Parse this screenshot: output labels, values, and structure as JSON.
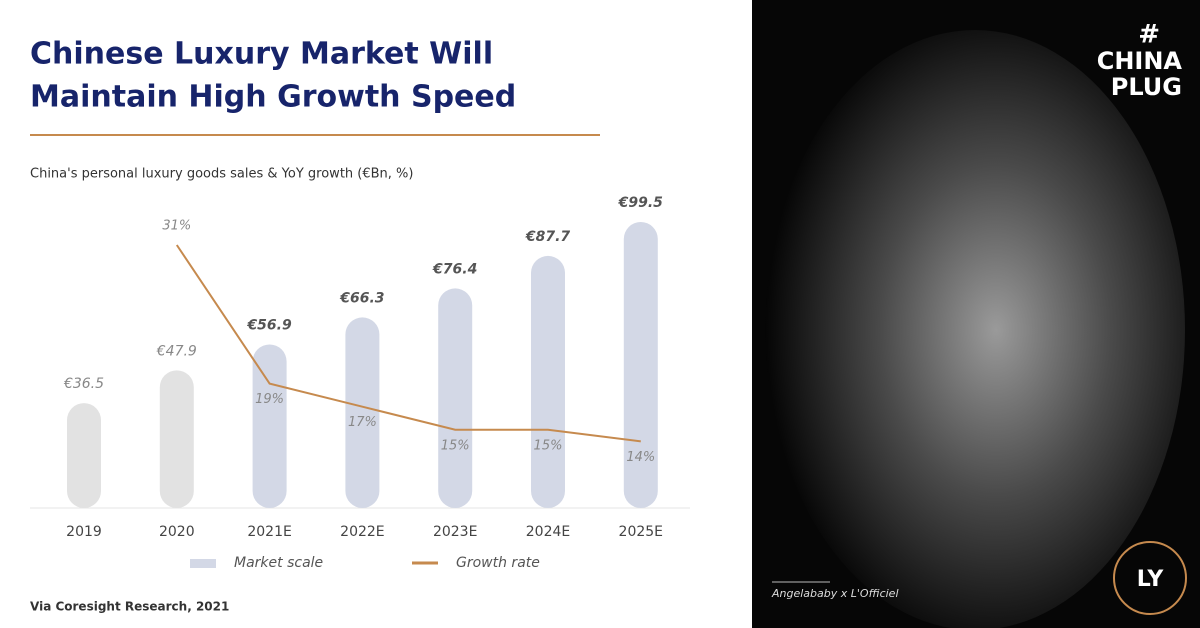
{
  "header": {
    "title": [
      "Chinese Luxury Market Will",
      "Maintain High Growth Speed"
    ]
  },
  "chart_data": {
    "type": "bar",
    "subtitle": "China's personal luxury goods sales & YoY growth (€Bn, %)",
    "categories": [
      "2019",
      "2020",
      "2021E",
      "2022E",
      "2023E",
      "2024E",
      "2025E"
    ],
    "series": [
      {
        "name": "Market scale",
        "type": "bar",
        "color": "#d3d8e6",
        "colors": [
          "#e2e2e2",
          "#e2e2e2",
          "#d3d8e6",
          "#d3d8e6",
          "#d3d8e6",
          "#d3d8e6",
          "#d3d8e6"
        ],
        "values": [
          36.5,
          47.9,
          56.9,
          66.3,
          76.4,
          87.7,
          99.5
        ],
        "value_labels": [
          "€36.5",
          "€47.9",
          "€56.9",
          "€66.3",
          "€76.4",
          "€87.7",
          "€99.5"
        ]
      },
      {
        "name": "Growth rate",
        "type": "line",
        "color": "#c68a4e",
        "values": [
          null,
          31,
          19,
          17,
          15,
          15,
          14
        ],
        "value_labels": [
          null,
          "31%",
          "19%",
          "17%",
          "15%",
          "15%",
          "14%"
        ]
      }
    ]
  },
  "source": "Via Coresight Research, 2021",
  "photo": {
    "caption": "Angelababy x L'Officiel",
    "brand": [
      "#",
      "CHINA",
      "PLUG"
    ],
    "logo": "LY"
  }
}
